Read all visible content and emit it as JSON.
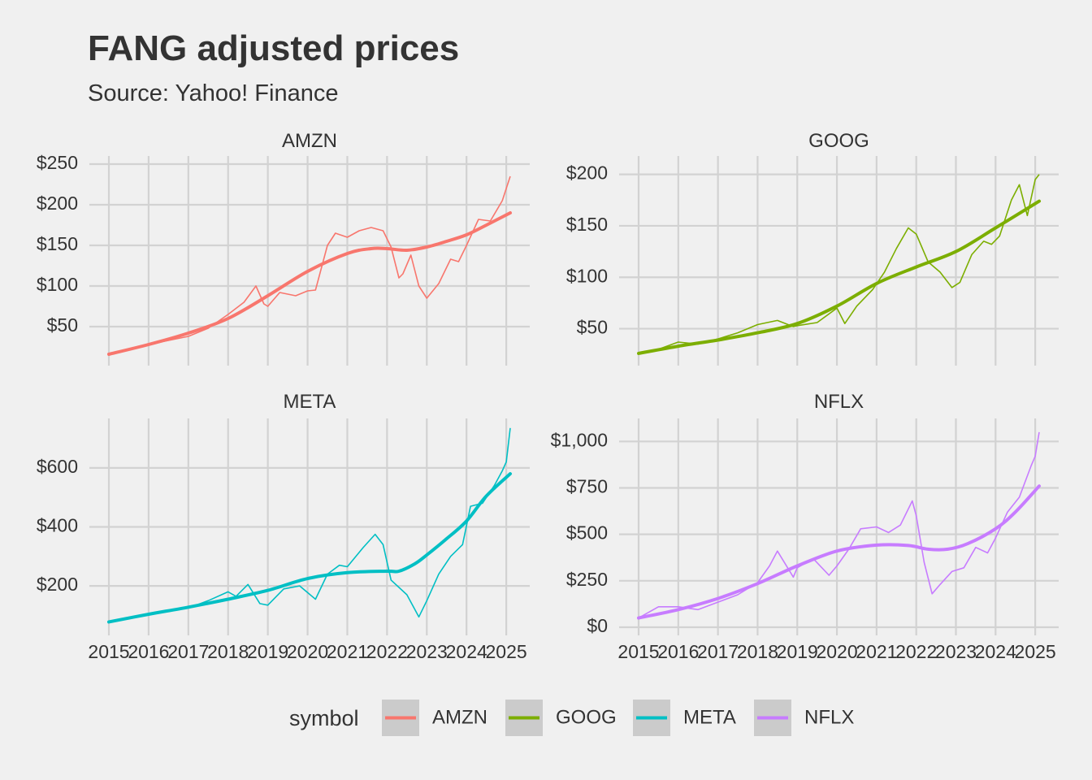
{
  "title": "FANG adjusted prices",
  "subtitle": "Source: Yahoo! Finance",
  "chart_data": {
    "type": "line",
    "layout": "facet-2x2",
    "x_ticks": [
      "2015",
      "2016",
      "2017",
      "2018",
      "2019",
      "2020",
      "2021",
      "2022",
      "2023",
      "2024",
      "2025"
    ],
    "xlim": [
      2015,
      2025.1
    ],
    "grid": true,
    "legend": {
      "title": "symbol",
      "placement": "bottom",
      "entries": [
        "AMZN",
        "GOOG",
        "META",
        "NFLX"
      ]
    },
    "panels": [
      {
        "name": "AMZN",
        "color": "#F8766D",
        "ylim": [
          12,
          250
        ],
        "y_ticks": [
          50,
          100,
          150,
          200,
          250
        ],
        "y_tick_labels": [
          "$50",
          "$100",
          "$150",
          "$200",
          "$250"
        ],
        "price": [
          [
            2015.0,
            16
          ],
          [
            2015.5,
            22
          ],
          [
            2016.0,
            28
          ],
          [
            2016.5,
            33
          ],
          [
            2017.0,
            38
          ],
          [
            2017.5,
            48
          ],
          [
            2018.0,
            65
          ],
          [
            2018.4,
            80
          ],
          [
            2018.7,
            100
          ],
          [
            2018.9,
            78
          ],
          [
            2019.0,
            75
          ],
          [
            2019.3,
            92
          ],
          [
            2019.7,
            88
          ],
          [
            2020.0,
            94
          ],
          [
            2020.2,
            95
          ],
          [
            2020.5,
            150
          ],
          [
            2020.7,
            165
          ],
          [
            2021.0,
            160
          ],
          [
            2021.3,
            168
          ],
          [
            2021.6,
            172
          ],
          [
            2021.9,
            168
          ],
          [
            2022.1,
            148
          ],
          [
            2022.3,
            110
          ],
          [
            2022.4,
            115
          ],
          [
            2022.6,
            138
          ],
          [
            2022.8,
            100
          ],
          [
            2023.0,
            85
          ],
          [
            2023.3,
            103
          ],
          [
            2023.6,
            133
          ],
          [
            2023.8,
            130
          ],
          [
            2024.0,
            150
          ],
          [
            2024.3,
            182
          ],
          [
            2024.6,
            180
          ],
          [
            2024.9,
            205
          ],
          [
            2025.1,
            235
          ]
        ],
        "trend": [
          [
            2015.0,
            16
          ],
          [
            2016.0,
            28
          ],
          [
            2017.0,
            42
          ],
          [
            2018.0,
            60
          ],
          [
            2019.0,
            88
          ],
          [
            2020.0,
            118
          ],
          [
            2021.0,
            140
          ],
          [
            2021.6,
            146
          ],
          [
            2022.0,
            146
          ],
          [
            2022.5,
            144
          ],
          [
            2023.0,
            148
          ],
          [
            2023.5,
            155
          ],
          [
            2024.0,
            163
          ],
          [
            2024.5,
            175
          ],
          [
            2025.1,
            190
          ]
        ]
      },
      {
        "name": "GOOG",
        "color": "#7CAE00",
        "ylim": [
          22,
          210
        ],
        "y_ticks": [
          50,
          100,
          150,
          200
        ],
        "y_tick_labels": [
          "$50",
          "$100",
          "$150",
          "$200"
        ],
        "price": [
          [
            2015.0,
            26
          ],
          [
            2015.5,
            30
          ],
          [
            2016.0,
            37
          ],
          [
            2016.5,
            35
          ],
          [
            2017.0,
            40
          ],
          [
            2017.5,
            46
          ],
          [
            2018.0,
            54
          ],
          [
            2018.5,
            58
          ],
          [
            2018.9,
            52
          ],
          [
            2019.0,
            53
          ],
          [
            2019.5,
            56
          ],
          [
            2020.0,
            70
          ],
          [
            2020.2,
            55
          ],
          [
            2020.5,
            72
          ],
          [
            2020.9,
            88
          ],
          [
            2021.2,
            105
          ],
          [
            2021.5,
            128
          ],
          [
            2021.8,
            148
          ],
          [
            2022.0,
            142
          ],
          [
            2022.3,
            115
          ],
          [
            2022.6,
            105
          ],
          [
            2022.9,
            90
          ],
          [
            2023.1,
            95
          ],
          [
            2023.4,
            122
          ],
          [
            2023.7,
            135
          ],
          [
            2023.9,
            132
          ],
          [
            2024.1,
            140
          ],
          [
            2024.4,
            175
          ],
          [
            2024.6,
            190
          ],
          [
            2024.8,
            160
          ],
          [
            2025.0,
            195
          ],
          [
            2025.1,
            200
          ]
        ],
        "trend": [
          [
            2015.0,
            26
          ],
          [
            2016.0,
            33
          ],
          [
            2017.0,
            39
          ],
          [
            2018.0,
            46
          ],
          [
            2019.0,
            55
          ],
          [
            2020.0,
            72
          ],
          [
            2021.0,
            94
          ],
          [
            2022.0,
            110
          ],
          [
            2023.0,
            125
          ],
          [
            2024.0,
            148
          ],
          [
            2025.1,
            174
          ]
        ]
      },
      {
        "name": "META",
        "color": "#00BFC4",
        "ylim": [
          60,
          740
        ],
        "y_ticks": [
          200,
          400,
          600
        ],
        "y_tick_labels": [
          "$200",
          "$400",
          "$600"
        ],
        "price": [
          [
            2015.0,
            80
          ],
          [
            2015.5,
            92
          ],
          [
            2016.0,
            105
          ],
          [
            2016.5,
            118
          ],
          [
            2017.0,
            125
          ],
          [
            2017.5,
            150
          ],
          [
            2018.0,
            180
          ],
          [
            2018.2,
            165
          ],
          [
            2018.5,
            205
          ],
          [
            2018.8,
            140
          ],
          [
            2019.0,
            135
          ],
          [
            2019.4,
            190
          ],
          [
            2019.8,
            200
          ],
          [
            2020.2,
            155
          ],
          [
            2020.5,
            240
          ],
          [
            2020.8,
            270
          ],
          [
            2021.0,
            265
          ],
          [
            2021.4,
            330
          ],
          [
            2021.7,
            375
          ],
          [
            2021.9,
            340
          ],
          [
            2022.1,
            220
          ],
          [
            2022.5,
            170
          ],
          [
            2022.8,
            95
          ],
          [
            2023.0,
            150
          ],
          [
            2023.3,
            240
          ],
          [
            2023.6,
            300
          ],
          [
            2023.9,
            340
          ],
          [
            2024.1,
            470
          ],
          [
            2024.4,
            480
          ],
          [
            2024.7,
            540
          ],
          [
            2024.9,
            590
          ],
          [
            2025.0,
            620
          ],
          [
            2025.1,
            735
          ]
        ],
        "trend": [
          [
            2015.0,
            78
          ],
          [
            2016.0,
            104
          ],
          [
            2017.0,
            128
          ],
          [
            2018.0,
            155
          ],
          [
            2019.0,
            185
          ],
          [
            2020.0,
            225
          ],
          [
            2021.0,
            245
          ],
          [
            2022.0,
            250
          ],
          [
            2022.3,
            250
          ],
          [
            2022.7,
            275
          ],
          [
            2023.0,
            305
          ],
          [
            2023.5,
            360
          ],
          [
            2024.0,
            420
          ],
          [
            2024.5,
            505
          ],
          [
            2025.1,
            580
          ]
        ]
      },
      {
        "name": "NFLX",
        "color": "#C77CFF",
        "ylim": [
          0,
          1080
        ],
        "y_ticks": [
          0,
          250,
          500,
          750,
          1000
        ],
        "y_tick_labels": [
          "$0",
          "$250",
          "$500",
          "$750",
          "$1,000"
        ],
        "price": [
          [
            2015.0,
            50
          ],
          [
            2015.5,
            110
          ],
          [
            2016.0,
            110
          ],
          [
            2016.5,
            95
          ],
          [
            2017.0,
            135
          ],
          [
            2017.5,
            175
          ],
          [
            2018.0,
            240
          ],
          [
            2018.3,
            330
          ],
          [
            2018.5,
            410
          ],
          [
            2018.9,
            270
          ],
          [
            2019.0,
            320
          ],
          [
            2019.4,
            370
          ],
          [
            2019.8,
            280
          ],
          [
            2020.0,
            330
          ],
          [
            2020.3,
            420
          ],
          [
            2020.6,
            530
          ],
          [
            2021.0,
            540
          ],
          [
            2021.3,
            510
          ],
          [
            2021.6,
            550
          ],
          [
            2021.9,
            680
          ],
          [
            2022.0,
            600
          ],
          [
            2022.2,
            350
          ],
          [
            2022.4,
            180
          ],
          [
            2022.6,
            230
          ],
          [
            2022.9,
            300
          ],
          [
            2023.2,
            320
          ],
          [
            2023.5,
            430
          ],
          [
            2023.8,
            400
          ],
          [
            2024.0,
            480
          ],
          [
            2024.3,
            620
          ],
          [
            2024.6,
            700
          ],
          [
            2024.9,
            870
          ],
          [
            2025.0,
            920
          ],
          [
            2025.1,
            1050
          ]
        ],
        "trend": [
          [
            2015.0,
            50
          ],
          [
            2016.0,
            95
          ],
          [
            2017.0,
            155
          ],
          [
            2018.0,
            235
          ],
          [
            2019.0,
            330
          ],
          [
            2020.0,
            410
          ],
          [
            2021.0,
            442
          ],
          [
            2021.8,
            440
          ],
          [
            2022.3,
            420
          ],
          [
            2022.8,
            420
          ],
          [
            2023.3,
            450
          ],
          [
            2024.0,
            530
          ],
          [
            2024.5,
            620
          ],
          [
            2025.1,
            760
          ]
        ]
      }
    ]
  }
}
